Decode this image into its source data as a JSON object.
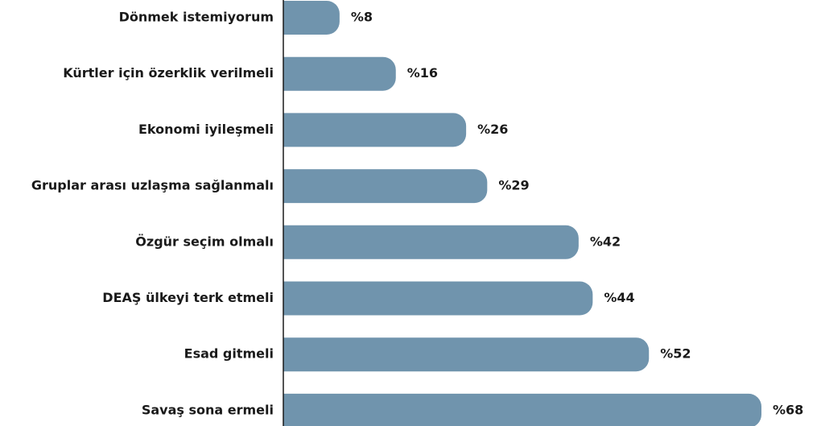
{
  "chart_data": {
    "type": "barh",
    "categories": [
      "Dönmek istemiyorum",
      "Kürtler için özerklik verilmeli",
      "Ekonomi iyileşmeli",
      "Gruplar arası uzlaşma sağlanmalı",
      "Özgür seçim olmalı",
      "DEAŞ ülkeyi terk etmeli",
      "Esad gitmeli",
      "Savaş sona ermeli"
    ],
    "values": [
      8,
      16,
      26,
      29,
      42,
      44,
      52,
      68
    ],
    "value_labels": [
      "%8",
      "%16",
      "%26",
      "%29",
      "%42",
      "%44",
      "%52",
      "%68"
    ],
    "color": "#7094ad"
  }
}
